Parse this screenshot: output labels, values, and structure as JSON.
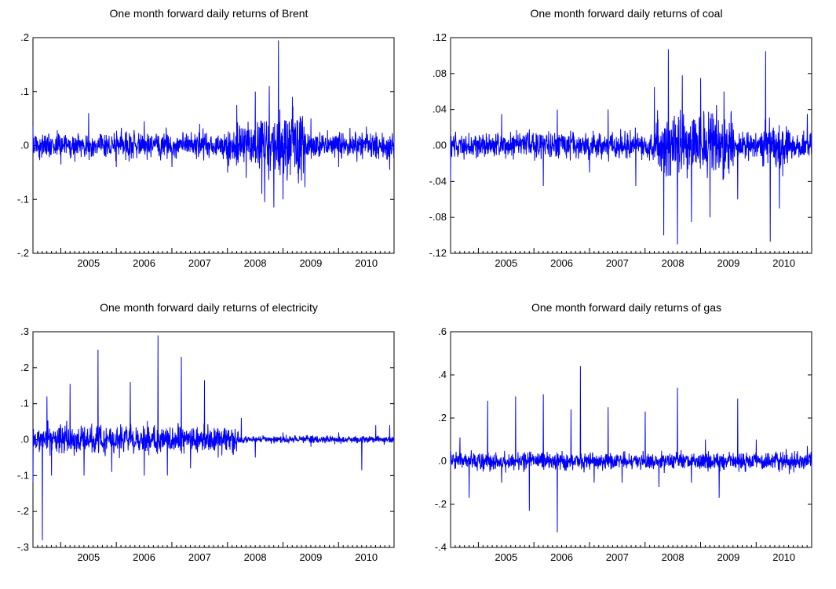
{
  "chart_data": [
    {
      "type": "line",
      "title": "One month forward daily returns of Brent",
      "x_tick_labels": [
        "2005",
        "2006",
        "2007",
        "2008",
        "2009",
        "2010"
      ],
      "y_tick_labels": [
        ".2",
        ".1",
        ".0",
        "-.1",
        "-.2"
      ],
      "y_ticks": [
        0.2,
        0.1,
        0.0,
        -0.1,
        -0.2
      ],
      "ylim": [
        -0.2,
        0.2
      ],
      "xlim": [
        "2004-07-01",
        "2010-12-31"
      ],
      "line_color": "#0000ff",
      "series": [
        {
          "x": [
            "2004-07",
            "2005-01",
            "2005-07",
            "2006-01",
            "2006-07",
            "2007-01",
            "2007-07",
            "2008-01",
            "2008-03",
            "2008-05",
            "2008-07",
            "2008-09",
            "2008-10",
            "2008-11",
            "2008-12",
            "2009-01",
            "2009-03",
            "2009-05",
            "2009-07",
            "2010-01",
            "2010-07",
            "2010-12"
          ],
          "y": [
            0.035,
            -0.035,
            0.06,
            -0.04,
            0.045,
            -0.04,
            0.04,
            -0.05,
            0.075,
            -0.06,
            0.1,
            -0.105,
            0.11,
            -0.115,
            0.195,
            -0.1,
            0.09,
            -0.065,
            0.05,
            -0.04,
            0.035,
            -0.045
          ]
        }
      ]
    },
    {
      "type": "line",
      "title": "One month forward daily returns of coal",
      "x_tick_labels": [
        "2005",
        "2006",
        "2007",
        "2008",
        "2009",
        "2010"
      ],
      "y_tick_labels": [
        ".12",
        ".08",
        ".04",
        ".00",
        "-.04",
        "-.08",
        "-.12"
      ],
      "y_ticks": [
        0.12,
        0.08,
        0.04,
        0.0,
        -0.04,
        -0.08,
        -0.12
      ],
      "ylim": [
        -0.12,
        0.12
      ],
      "xlim": [
        "2004-07-01",
        "2010-12-31"
      ],
      "line_color": "#0000ff",
      "series": [
        {
          "x": [
            "2004-07",
            "2004-08",
            "2005-06",
            "2006-03",
            "2006-06",
            "2007-01",
            "2007-05",
            "2007-11",
            "2008-03",
            "2008-05",
            "2008-06",
            "2008-08",
            "2008-09",
            "2008-11",
            "2009-01",
            "2009-03",
            "2009-06",
            "2009-09",
            "2010-03",
            "2010-04",
            "2010-06",
            "2010-12"
          ],
          "y": [
            -0.04,
            0.01,
            0.035,
            -0.045,
            0.04,
            -0.03,
            0.04,
            -0.045,
            0.065,
            -0.1,
            0.107,
            -0.11,
            0.078,
            -0.085,
            0.075,
            -0.08,
            0.06,
            -0.06,
            0.105,
            -0.107,
            -0.07,
            0.035
          ]
        }
      ]
    },
    {
      "type": "line",
      "title": "One month forward daily returns of electricity",
      "x_tick_labels": [
        "2005",
        "2006",
        "2007",
        "2008",
        "2009",
        "2010"
      ],
      "y_tick_labels": [
        ".3",
        ".2",
        ".1",
        ".0",
        "-.1",
        "-.2",
        "-.3"
      ],
      "y_ticks": [
        0.3,
        0.2,
        0.1,
        0.0,
        -0.1,
        -0.2,
        -0.3
      ],
      "ylim": [
        -0.3,
        0.3
      ],
      "xlim": [
        "2004-07-01",
        "2010-12-31"
      ],
      "line_color": "#0000ff",
      "series": [
        {
          "x": [
            "2004-07",
            "2004-09",
            "2004-10",
            "2004-11",
            "2005-03",
            "2005-06",
            "2005-09",
            "2005-12",
            "2006-04",
            "2006-07",
            "2006-10",
            "2006-12",
            "2007-03",
            "2007-05",
            "2007-08",
            "2007-11",
            "2008-04",
            "2008-07",
            "2009-01",
            "2009-07",
            "2010-01",
            "2010-06",
            "2010-09",
            "2010-12"
          ],
          "y": [
            -0.12,
            -0.28,
            0.12,
            -0.1,
            0.155,
            -0.1,
            0.25,
            -0.09,
            0.16,
            -0.1,
            0.29,
            -0.1,
            0.23,
            -0.08,
            0.165,
            -0.05,
            0.06,
            -0.05,
            0.02,
            -0.02,
            0.02,
            -0.085,
            0.04,
            0.04
          ]
        }
      ]
    },
    {
      "type": "line",
      "title": "One month forward daily returns of gas",
      "x_tick_labels": [
        "2005",
        "2006",
        "2007",
        "2008",
        "2009",
        "2010"
      ],
      "y_tick_labels": [
        ".6",
        ".4",
        ".2",
        ".0",
        "-.2",
        "-.4"
      ],
      "y_ticks": [
        0.6,
        0.4,
        0.2,
        0.0,
        -0.2,
        -0.4
      ],
      "ylim": [
        -0.4,
        0.6
      ],
      "xlim": [
        "2004-07-01",
        "2010-12-31"
      ],
      "line_color": "#0000ff",
      "series": [
        {
          "x": [
            "2004-07",
            "2004-09",
            "2004-11",
            "2005-03",
            "2005-06",
            "2005-09",
            "2005-12",
            "2006-03",
            "2006-06",
            "2006-09",
            "2006-11",
            "2007-02",
            "2007-05",
            "2007-08",
            "2008-01",
            "2008-04",
            "2008-08",
            "2008-11",
            "2009-02",
            "2009-05",
            "2009-09",
            "2010-01",
            "2010-06",
            "2010-12"
          ],
          "y": [
            -0.02,
            0.11,
            -0.17,
            0.28,
            -0.1,
            0.3,
            -0.23,
            0.31,
            -0.33,
            0.24,
            0.44,
            -0.1,
            0.25,
            -0.1,
            0.23,
            -0.12,
            0.34,
            -0.1,
            0.1,
            -0.17,
            0.29,
            0.1,
            -0.05,
            0.07
          ]
        }
      ]
    }
  ]
}
